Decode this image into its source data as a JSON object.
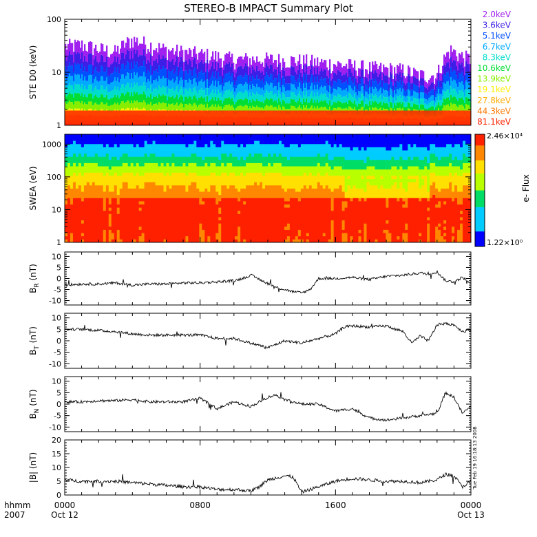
{
  "title": "STEREO-B IMPACT Summary Plot",
  "x_axis": {
    "label_top": "hhmm",
    "label_bottom": "2007",
    "ticks": [
      {
        "hour": 0,
        "time": "0000",
        "date": "Oct 12"
      },
      {
        "hour": 8,
        "time": "0800",
        "date": ""
      },
      {
        "hour": 16,
        "time": "1600",
        "date": ""
      },
      {
        "hour": 24,
        "time": "0000",
        "date": "Oct 13"
      }
    ]
  },
  "side_stamp": "Tue Feb 19 16:18:13 2008",
  "colorbar": {
    "label": "e- Flux",
    "max_label": "2.46×10⁴",
    "min_label": "1.22×10⁰"
  },
  "colors": {
    "energy_channels": [
      "#a020f0",
      "#3c1ee6",
      "#0050ff",
      "#00aaff",
      "#00ddcc",
      "#00dd33",
      "#88ee00",
      "#ffee00",
      "#ffaa00",
      "#ff7700",
      "#ff2200"
    ]
  },
  "chart_data": [
    {
      "type": "area",
      "panel": "ste",
      "ylabel": "STE D0 (keV)",
      "yscale": "log",
      "ylim": [
        1,
        100
      ],
      "yticks": [
        {
          "v": 1,
          "label": "1"
        },
        {
          "v": 10,
          "label": "10"
        },
        {
          "v": 100,
          "label": "100"
        }
      ],
      "legend_placement": "right",
      "channels": [
        "2.0keV",
        "3.6keV",
        "5.1keV",
        "6.7keV",
        "8.3keV",
        "10.6keV",
        "13.9keV",
        "19.1keV",
        "27.8keV",
        "44.3keV",
        "81.1keV"
      ],
      "xlim": [
        0,
        24
      ],
      "envelope_top": {
        "hours": [
          0,
          1,
          2,
          3,
          4,
          5,
          6,
          8,
          10,
          12,
          14,
          16,
          18,
          20,
          21,
          22,
          22.8,
          23.5,
          24
        ],
        "values_keV": [
          28,
          30,
          25,
          22,
          38,
          30,
          24,
          20,
          16,
          16,
          15,
          13,
          11,
          10,
          8,
          8,
          24,
          18,
          16
        ]
      }
    },
    {
      "type": "heatmap",
      "panel": "swea",
      "ylabel": "SWEA (eV)",
      "yscale": "log",
      "ylim": [
        1,
        2000
      ],
      "yticks": [
        {
          "v": 1,
          "label": "1"
        },
        {
          "v": 10,
          "label": "10"
        },
        {
          "v": 100,
          "label": "100"
        },
        {
          "v": 1000,
          "label": "1000"
        }
      ],
      "xlim": [
        0,
        24
      ],
      "colorbar_range": [
        1.22,
        24600
      ]
    },
    {
      "type": "line",
      "panel": "br",
      "ylabel": "B_R (nT)",
      "ylim": [
        -12,
        12
      ],
      "yticks": [
        {
          "v": 10,
          "label": "10"
        },
        {
          "v": 5,
          "label": "5"
        },
        {
          "v": 0,
          "label": "0"
        },
        {
          "v": -5,
          "label": "-5"
        },
        {
          "v": -10,
          "label": "-10"
        }
      ],
      "x": [
        0,
        1,
        2,
        3,
        4,
        5,
        6,
        7,
        8,
        9,
        10,
        10.5,
        11,
        11.8,
        12.5,
        13.5,
        14,
        14.5,
        15,
        16,
        17,
        18,
        19,
        20,
        21,
        21.5,
        22,
        22.5,
        23,
        23.5,
        24
      ],
      "y": [
        -3,
        -2.5,
        -2.5,
        -2,
        -3,
        -2.5,
        -2.5,
        -2,
        -2,
        -1.5,
        -1,
        0,
        1.5,
        -1.5,
        -4,
        -6,
        -6.5,
        -5,
        0,
        0,
        0.5,
        -0.5,
        1,
        1.5,
        2.5,
        2,
        3,
        -1,
        -1.5,
        0.5,
        -2
      ]
    },
    {
      "type": "line",
      "panel": "bt",
      "ylabel": "B_T (nT)",
      "ylim": [
        -12,
        12
      ],
      "yticks": [
        {
          "v": 10,
          "label": "10"
        },
        {
          "v": 5,
          "label": "5"
        },
        {
          "v": 0,
          "label": "0"
        },
        {
          "v": -5,
          "label": "-5"
        },
        {
          "v": -10,
          "label": "-10"
        }
      ],
      "x": [
        0,
        1,
        2,
        3,
        4,
        5,
        6,
        7,
        8,
        9,
        10,
        11,
        12,
        13,
        14,
        15,
        16,
        16.5,
        17,
        18,
        19,
        20,
        20.5,
        21,
        21.5,
        22,
        22.5,
        23,
        23.5,
        24
      ],
      "y": [
        5,
        5,
        4.5,
        4,
        3,
        2.5,
        2.5,
        2.5,
        2.5,
        1,
        1,
        -1,
        -3,
        0,
        -1,
        1,
        3,
        6,
        6.5,
        6,
        6.5,
        4,
        -1,
        2,
        0,
        7,
        7.5,
        7,
        4,
        5
      ]
    },
    {
      "type": "line",
      "panel": "bn",
      "ylabel": "B_N (nT)",
      "ylim": [
        -12,
        12
      ],
      "yticks": [
        {
          "v": 10,
          "label": "10"
        },
        {
          "v": 5,
          "label": "5"
        },
        {
          "v": 0,
          "label": "0"
        },
        {
          "v": -5,
          "label": "-5"
        },
        {
          "v": -10,
          "label": "-10"
        }
      ],
      "x": [
        0,
        1,
        2,
        3,
        4,
        5,
        6,
        7,
        8,
        9,
        10,
        11,
        12,
        12.5,
        13,
        14,
        15,
        16,
        17,
        18,
        19,
        20,
        21,
        22,
        22.5,
        23,
        23.5,
        24
      ],
      "y": [
        1,
        1,
        1.5,
        1.5,
        2,
        1,
        1,
        1,
        2.5,
        -2,
        1,
        -1,
        3,
        4,
        2,
        0,
        0,
        -3,
        -2,
        -6,
        -7,
        -6,
        -5,
        -4,
        5,
        3,
        -4,
        -1
      ]
    },
    {
      "type": "line",
      "panel": "bmag",
      "ylabel": "|B| (nT)",
      "ylim": [
        0,
        20
      ],
      "yticks": [
        {
          "v": 20,
          "label": "20"
        },
        {
          "v": 15,
          "label": "15"
        },
        {
          "v": 10,
          "label": "10"
        },
        {
          "v": 5,
          "label": "5"
        },
        {
          "v": 0,
          "label": "0"
        }
      ],
      "x": [
        0,
        1,
        2,
        3,
        4,
        5,
        6,
        7,
        8,
        9,
        10,
        11,
        11.5,
        12,
        13,
        13.5,
        14,
        15,
        16,
        17,
        18,
        19,
        20,
        21,
        22,
        22.5,
        23,
        23.5,
        24
      ],
      "y": [
        5.5,
        5,
        5,
        5,
        4.5,
        4,
        3.5,
        3,
        3,
        2,
        2,
        1.5,
        3,
        5.5,
        7,
        6.5,
        1,
        3,
        5,
        6,
        5.5,
        5,
        5,
        4.5,
        5.5,
        7.5,
        7,
        3,
        5
      ]
    }
  ]
}
